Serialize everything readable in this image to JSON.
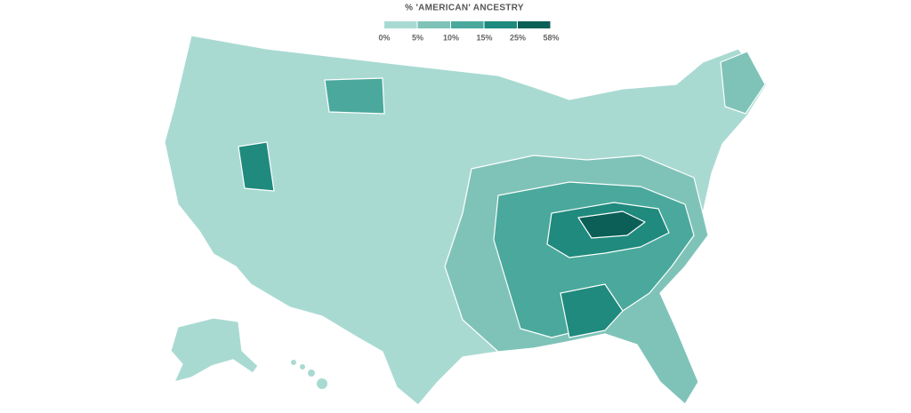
{
  "legend": {
    "title": "% 'AMERICAN' ANCESTRY",
    "colors": [
      "#a9dad2",
      "#7fc3b8",
      "#4aa99c",
      "#1f8a7d",
      "#0b5f56"
    ],
    "ticks": [
      {
        "value": 0,
        "label": "0%"
      },
      {
        "value": 5,
        "label": "5%"
      },
      {
        "value": 10,
        "label": "10%"
      },
      {
        "value": 15,
        "label": "15%"
      },
      {
        "value": 25,
        "label": "25%"
      },
      {
        "value": 58,
        "label": "58%"
      }
    ]
  }
}
